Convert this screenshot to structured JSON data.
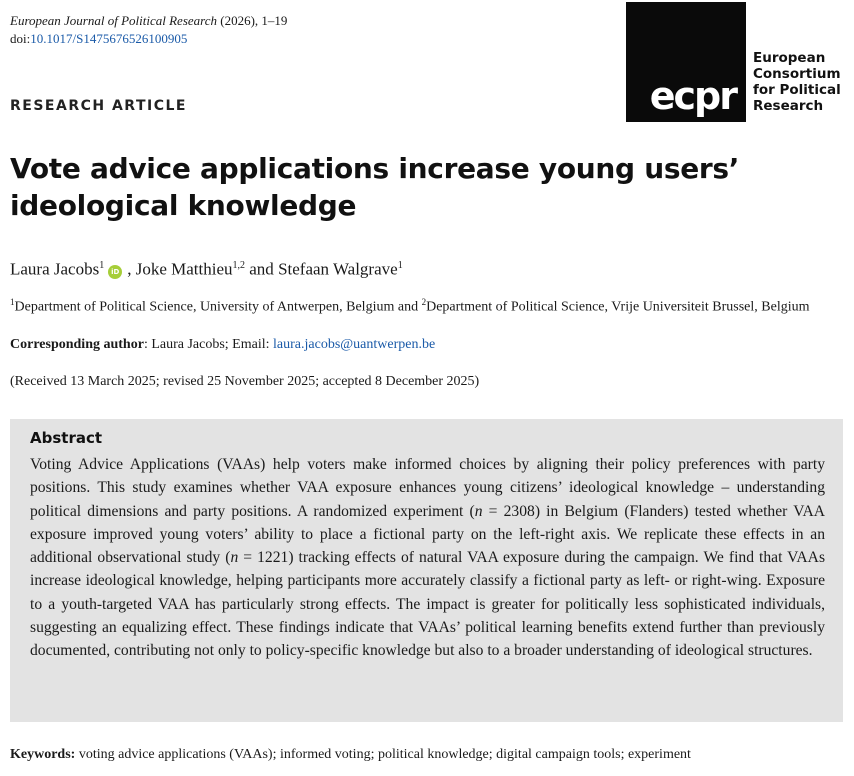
{
  "journal": {
    "name": "European Journal of Political Research",
    "citation": " (2026), 1–19",
    "doi_prefix": "doi:",
    "doi": "10.1017/S1475676526100905"
  },
  "logo": {
    "mark": "ecpr",
    "line1": "European",
    "line2": "Consortium",
    "line3": "for Political",
    "line4": "Research"
  },
  "article_type": "RESEARCH ARTICLE",
  "title": "Vote advice applications increase young users’ ideological knowledge",
  "authors": {
    "a1_name": "Laura Jacobs",
    "a1_sup": "1",
    "orcid_label": "iD",
    "a2_name": "Joke Matthieu",
    "a2_sup": "1,2",
    "connector": " and ",
    "a3_name": "Stefaan Walgrave",
    "a3_sup": "1"
  },
  "affiliations": {
    "sup1": "1",
    "text1": "Department of Political Science, University of Antwerpen, Belgium and ",
    "sup2": "2",
    "text2": "Department of Political Science, Vrije Universiteit Brussel, Belgium"
  },
  "corresponding": {
    "label": "Corresponding author",
    "text": ": Laura Jacobs; Email: ",
    "email": "laura.jacobs@uantwerpen.be"
  },
  "received": "(Received 13 March 2025; revised 25 November 2025; accepted 8 December 2025)",
  "abstract": {
    "heading": "Abstract",
    "part1": "Voting Advice Applications (VAAs) help voters make informed choices by aligning their policy preferences with party positions. This study examines whether VAA exposure enhances young citizens’ ideological knowledge – understanding political dimensions and party positions. A randomized experiment (",
    "n1_var": "n",
    "n1_eq": " = 2308",
    "part2": ") in Belgium (Flanders) tested whether VAA exposure improved young voters’ ability to place a fictional party on the left-right axis. We replicate these effects in an additional observational study (",
    "n2_var": "n",
    "n2_eq": " = 1221",
    "part3": ") tracking effects of natural VAA exposure during the campaign. We find that VAAs increase ideological knowledge, helping participants more accurately classify a fictional party as left- or right-wing. Exposure to a youth-targeted VAA has particularly strong effects. The impact is greater for politically less sophisticated individuals, suggesting an equalizing effect. These findings indicate that VAAs’ political learning benefits extend further than previously documented, contributing not only to policy-specific knowledge but also to a broader understanding of ideological structures."
  },
  "keywords": {
    "label": "Keywords:",
    "text": " voting advice applications (VAAs); informed voting; political knowledge; digital campaign tools; experiment"
  }
}
